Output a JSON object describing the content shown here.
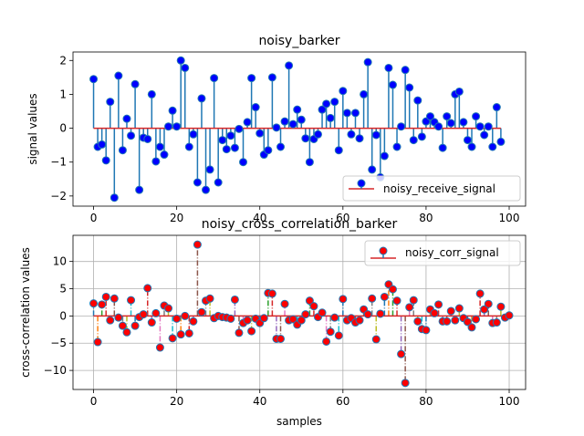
{
  "chart_data": [
    {
      "type": "stem",
      "title": "noisy_barker",
      "xlabel": "",
      "ylabel": "signal values",
      "xlim": [
        -4.95,
        103.95
      ],
      "ylim": [
        -2.3,
        2.25
      ],
      "xticks": [
        0,
        20,
        40,
        60,
        80,
        100
      ],
      "yticks": [
        -2,
        -1,
        0,
        1,
        2
      ],
      "grid": false,
      "legend_position": "lower-right",
      "series": [
        {
          "name": "noisy_receive_signal",
          "marker_color": "#0000ff",
          "line_color": "#1f77b4",
          "baseline_color": "#d62728",
          "x_start": 0,
          "values": [
            1.45,
            -0.55,
            -0.48,
            -0.95,
            0.78,
            -2.05,
            1.55,
            -0.65,
            0.28,
            -0.22,
            1.3,
            -1.82,
            -0.28,
            -0.32,
            1.0,
            -0.98,
            -0.55,
            -0.78,
            0.05,
            0.52,
            0.05,
            2.0,
            1.78,
            -0.55,
            -0.18,
            -1.6,
            0.88,
            -1.82,
            -1.22,
            1.48,
            -1.6,
            -0.35,
            -0.62,
            -0.22,
            -0.58,
            -0.02,
            -1.0,
            0.18,
            1.48,
            0.62,
            -0.15,
            -0.78,
            -0.65,
            1.5,
            0.02,
            -0.55,
            0.2,
            1.85,
            0.12,
            0.55,
            0.25,
            -0.3,
            -1.0,
            -0.32,
            -0.18,
            0.55,
            0.72,
            0.3,
            0.78,
            -0.65,
            1.1,
            0.45,
            -0.18,
            0.45,
            -0.3,
            1.0,
            1.95,
            -1.22,
            -0.2,
            -1.45,
            -0.82,
            1.78,
            1.28,
            -0.55,
            0.05,
            1.72,
            1.2,
            -0.35,
            0.82,
            -0.25,
            0.2,
            0.35,
            0.18,
            0.05,
            -0.58,
            0.35,
            0.15,
            1.0,
            1.08,
            0.18,
            -0.35,
            -0.55,
            0.35,
            0.05,
            -0.2,
            0.05,
            -0.55,
            0.62,
            -0.4
          ]
        }
      ]
    },
    {
      "type": "stem",
      "title": "noisy_cross_correlation_barker",
      "xlabel": "samples",
      "ylabel": "cross-correlation values",
      "xlim": [
        -4.95,
        103.95
      ],
      "ylim": [
        -13.5,
        14.8
      ],
      "xticks": [
        0,
        20,
        40,
        60,
        80,
        100
      ],
      "yticks": [
        -10,
        -5,
        0,
        5,
        10
      ],
      "grid": true,
      "legend_position": "upper-right",
      "series": [
        {
          "name": "noisy_corr_signal",
          "marker_face_color": "#ff0000",
          "marker_edge_color": "#1f77b4",
          "baseline_color": "#d62728",
          "stem_colors": [
            "#1f77b4",
            "#ff7f0e",
            "#2ca02c",
            "#d62728",
            "#9467bd",
            "#8c564b",
            "#e377c2",
            "#7f7f7f",
            "#bcbd22",
            "#17becf"
          ],
          "x_start": 0,
          "values": [
            2.3,
            -4.8,
            2.1,
            3.5,
            -0.8,
            3.2,
            -0.3,
            -1.8,
            -3.0,
            2.9,
            -1.8,
            -0.2,
            0.3,
            5.1,
            -1.2,
            0.5,
            -5.8,
            1.9,
            1.4,
            -4.1,
            -0.5,
            -3.4,
            0.0,
            -3.2,
            -1.0,
            13.1,
            0.7,
            2.8,
            3.2,
            -0.4,
            0.0,
            -0.2,
            -0.3,
            -0.5,
            3.0,
            -3.1,
            -1.3,
            -0.8,
            -2.8,
            -0.5,
            -1.3,
            -0.4,
            4.2,
            4.1,
            -4.2,
            -4.2,
            2.2,
            -0.8,
            -0.6,
            -1.6,
            -0.8,
            0.3,
            2.8,
            1.8,
            -0.2,
            0.6,
            -4.7,
            -2.9,
            -0.3,
            -3.6,
            3.1,
            -0.8,
            -0.4,
            -1.2,
            -0.8,
            1.2,
            0.3,
            3.2,
            -4.3,
            0.4,
            3.5,
            5.8,
            4.9,
            2.8,
            -7.0,
            -12.3,
            1.6,
            2.9,
            -1.0,
            -2.4,
            -2.6,
            1.2,
            0.5,
            2.1,
            -1.0,
            -1.0,
            0.9,
            -0.8,
            1.4,
            -0.4,
            -1.1,
            -2.1,
            -0.6,
            4.1,
            1.2,
            2.2,
            -1.3,
            -1.2,
            1.7,
            -0.3,
            0.1
          ]
        }
      ]
    }
  ]
}
